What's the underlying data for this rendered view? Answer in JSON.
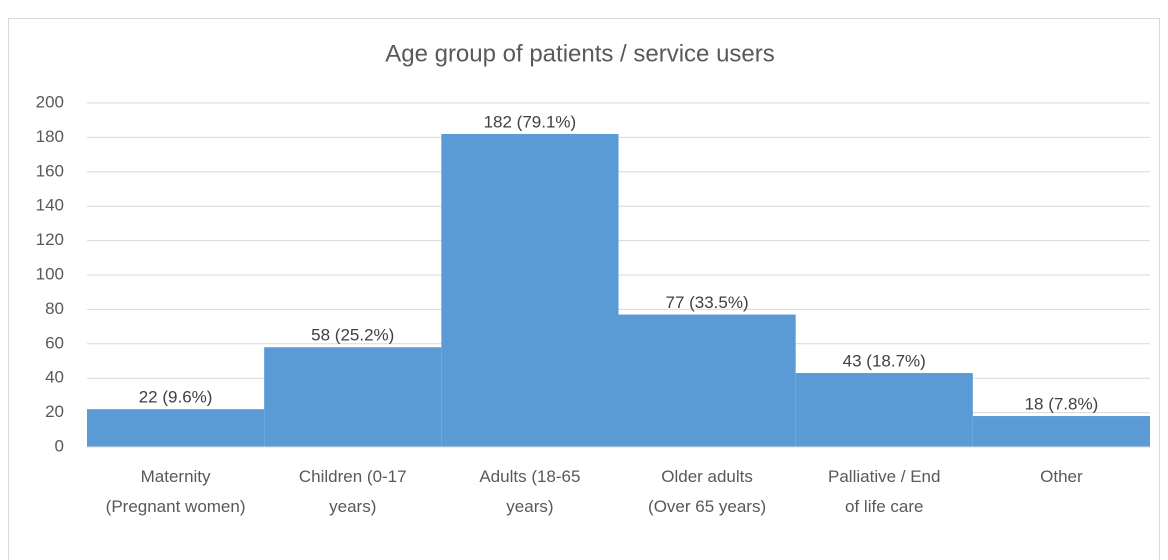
{
  "chart_data": {
    "type": "bar",
    "title": "Age group of patients / service users",
    "categories": [
      "Maternity (Pregnant women)",
      "Children (0-17 years)",
      "Adults (18-65 years)",
      "Older adults (Over 65 years)",
      "Palliative / End of life care",
      "Other"
    ],
    "values": [
      22,
      58,
      182,
      77,
      43,
      18
    ],
    "value_labels": [
      "22 (9.6%)",
      "58 (25.2%)",
      "182 (79.1%)",
      "77 (33.5%)",
      "43 (18.7%)",
      "18 (7.8%)"
    ],
    "color": "#5b9bd5",
    "ylim": [
      0,
      200
    ],
    "yticks": [
      0,
      20,
      40,
      60,
      80,
      100,
      120,
      140,
      160,
      180,
      200
    ],
    "grid": true
  }
}
